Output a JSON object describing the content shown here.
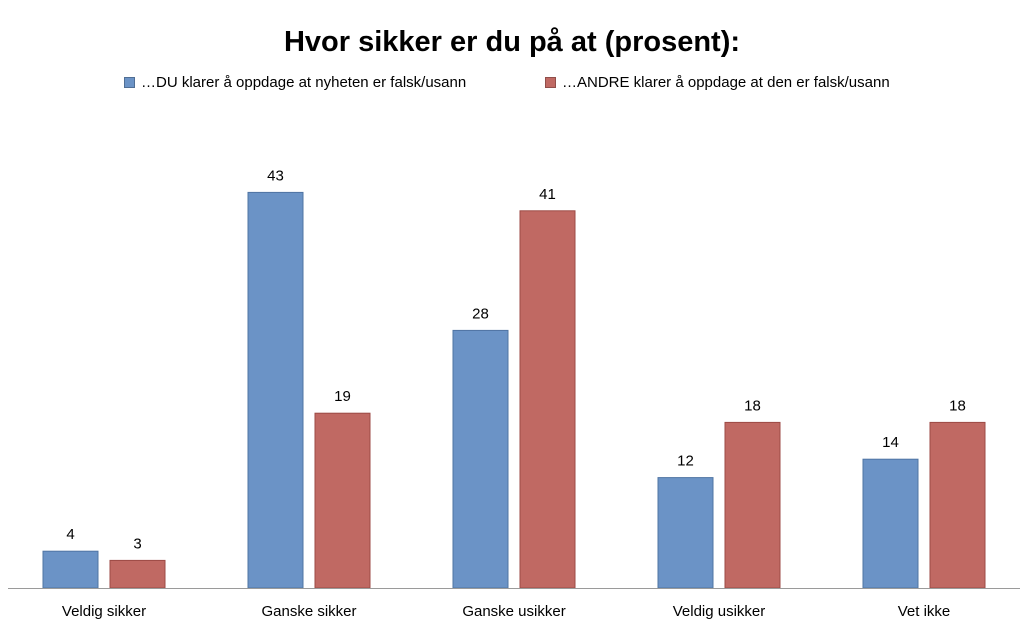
{
  "chart_data": {
    "type": "bar",
    "title": "Hvor sikker er du på at (prosent):",
    "categories": [
      "Veldig sikker",
      "Ganske sikker",
      "Ganske usikker",
      "Veldig usikker",
      "Vet ikke"
    ],
    "series": [
      {
        "name": "…DU klarer å oppdage at nyheten er falsk/usann",
        "color": "#6b93c6",
        "stroke": "#4f74a3",
        "values": [
          4,
          43,
          28,
          12,
          14
        ]
      },
      {
        "name": "…ANDRE klarer å oppdage at den er falsk/usann",
        "color": "#c06963",
        "stroke": "#9c4a45",
        "values": [
          3,
          19,
          41,
          18,
          18
        ]
      }
    ],
    "xlabel": "",
    "ylabel": "",
    "ylim": [
      0,
      45
    ],
    "grid": false,
    "legend_position": "top"
  }
}
